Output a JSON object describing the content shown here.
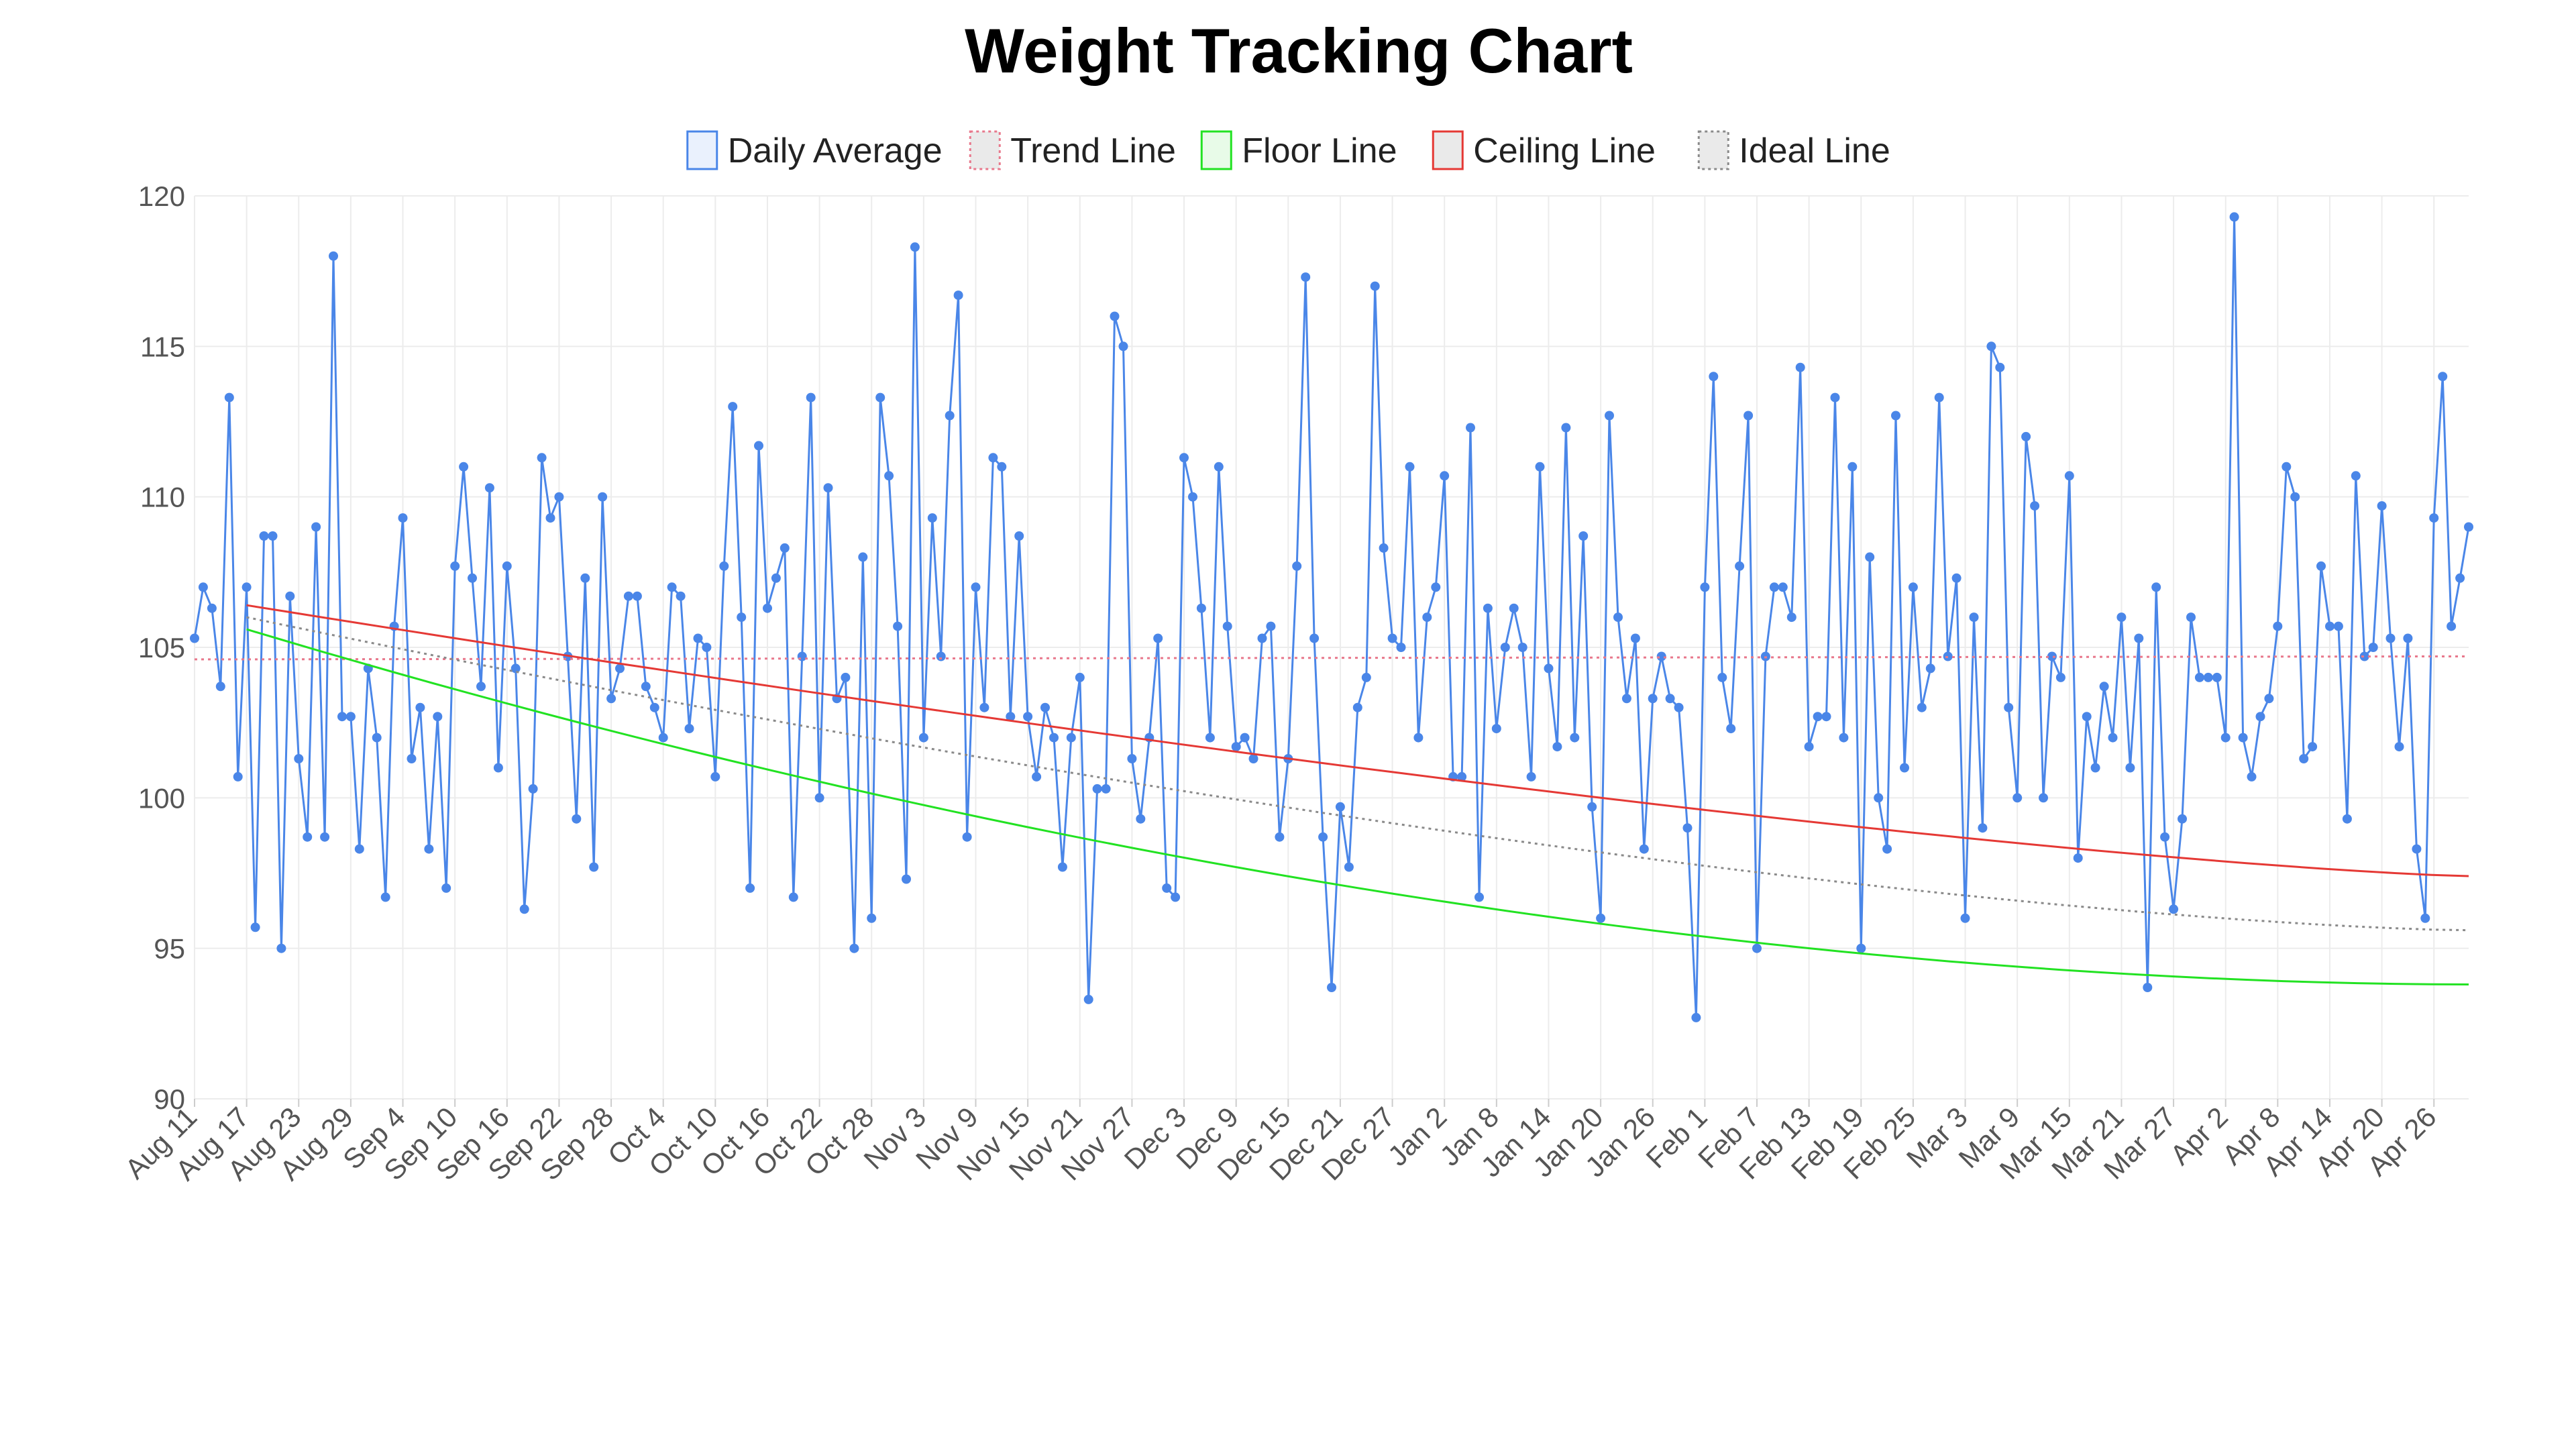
{
  "chart_data": {
    "type": "line",
    "title": "Weight Tracking Chart",
    "xlabel": "",
    "ylabel": "",
    "ylim": [
      90,
      120
    ],
    "y_ticks": [
      90,
      95,
      100,
      105,
      110,
      115,
      120
    ],
    "grid": true,
    "legend_position": "top-center",
    "x_start_date": "2023-08-11",
    "x_end_date": "2024-04-29",
    "x_tick_labels": [
      "Aug 11",
      "Aug 17",
      "Aug 23",
      "Aug 29",
      "Sep 4",
      "Sep 10",
      "Sep 16",
      "Sep 22",
      "Sep 28",
      "Oct 4",
      "Oct 10",
      "Oct 16",
      "Oct 22",
      "Oct 28",
      "Nov 3",
      "Nov 9",
      "Nov 15",
      "Nov 21",
      "Nov 27",
      "Dec 3",
      "Dec 9",
      "Dec 15",
      "Dec 21",
      "Dec 27",
      "Jan 2",
      "Jan 8",
      "Jan 14",
      "Jan 20",
      "Jan 26",
      "Feb 1",
      "Feb 7",
      "Feb 13",
      "Feb 19",
      "Feb 25",
      "Mar 3",
      "Mar 9",
      "Mar 15",
      "Mar 21",
      "Mar 27",
      "Apr 2",
      "Apr 8",
      "Apr 14",
      "Apr 20",
      "Apr 26"
    ],
    "series": [
      {
        "name": "Daily Average",
        "color": "#4a86e8",
        "style": "solid-with-points",
        "values": [
          105.3,
          107.0,
          106.3,
          103.7,
          113.3,
          100.7,
          107.0,
          95.7,
          108.7,
          108.7,
          95.0,
          106.7,
          101.3,
          98.7,
          109.0,
          98.7,
          118.0,
          102.7,
          102.7,
          98.3,
          104.3,
          102.0,
          96.7,
          105.7,
          109.3,
          101.3,
          103.0,
          98.3,
          102.7,
          97.0,
          107.7,
          111.0,
          107.3,
          103.7,
          110.3,
          101.0,
          107.7,
          104.3,
          96.3,
          100.3,
          111.3,
          109.3,
          110.0,
          104.7,
          99.3,
          107.3,
          97.7,
          110.0,
          103.3,
          104.3,
          106.7,
          106.7,
          103.7,
          103.0,
          102.0,
          107.0,
          106.7,
          102.3,
          105.3,
          105.0,
          100.7,
          107.7,
          113.0,
          106.0,
          97.0,
          111.7,
          106.3,
          107.3,
          108.3,
          96.7,
          104.7,
          113.3,
          100.0,
          110.3,
          103.3,
          104.0,
          95.0,
          108.0,
          96.0,
          113.3,
          110.7,
          105.7,
          97.3,
          118.3,
          102.0,
          109.3,
          104.7,
          112.7,
          116.7,
          98.7,
          107.0,
          103.0,
          111.3,
          111.0,
          102.7,
          108.7,
          102.7,
          100.7,
          103.0,
          102.0,
          97.7,
          102.0,
          104.0,
          93.3,
          100.3,
          100.3,
          116.0,
          115.0,
          101.3,
          99.3,
          102.0,
          105.3,
          97.0,
          96.7,
          111.3,
          110.0,
          106.3,
          102.0,
          111.0,
          105.7,
          101.7,
          102.0,
          101.3,
          105.3,
          105.7,
          98.7,
          101.3,
          107.7,
          117.3,
          105.3,
          98.7,
          93.7,
          99.7,
          97.7,
          103.0,
          104.0,
          117.0,
          108.3,
          105.3,
          105.0,
          111.0,
          102.0,
          106.0,
          107.0,
          110.7,
          100.7,
          100.7,
          112.3,
          96.7,
          106.3,
          102.3,
          105.0,
          106.3,
          105.0,
          100.7,
          111.0,
          104.3,
          101.7,
          112.3,
          102.0,
          108.7,
          99.7,
          96.0,
          112.7,
          106.0,
          103.3,
          105.3,
          98.3,
          103.3,
          104.7,
          103.3,
          103.0,
          99.0,
          92.7,
          107.0,
          114.0,
          104.0,
          102.3,
          107.7,
          112.7,
          95.0,
          104.7,
          107.0,
          107.0,
          106.0,
          114.3,
          101.7,
          102.7,
          102.7,
          113.3,
          102.0,
          111.0,
          95.0,
          108.0,
          100.0,
          98.3,
          112.7,
          101.0,
          107.0,
          103.0,
          104.3,
          113.3,
          104.7,
          107.3,
          96.0,
          106.0,
          99.0,
          115.0,
          114.3,
          103.0,
          100.0,
          112.0,
          109.7,
          100.0,
          104.7,
          104.0,
          110.7,
          98.0,
          102.7,
          101.0,
          103.7,
          102.0,
          106.0,
          101.0,
          105.3,
          93.7,
          107.0,
          98.7,
          96.3,
          99.3,
          106.0,
          104.0,
          104.0,
          104.0,
          102.0,
          119.3,
          102.0,
          100.7,
          102.7,
          103.3,
          105.7,
          111.0,
          110.0,
          101.3,
          101.7,
          107.7,
          105.7,
          105.7,
          99.3,
          110.7,
          104.7,
          105.0,
          109.7,
          105.3,
          101.7,
          105.3,
          98.3,
          96.0,
          109.3,
          114.0,
          105.7,
          107.3,
          109.0
        ]
      },
      {
        "name": "Trend Line",
        "color": "#e8788c",
        "style": "dotted",
        "start_date": "2023-08-11",
        "end_date": "2024-04-29",
        "values": [
          104.6,
          104.7
        ]
      },
      {
        "name": "Floor Line",
        "color": "#22e222",
        "style": "solid",
        "start_date": "2023-08-17",
        "end_date": "2024-04-29",
        "values": [
          105.6,
          93.8
        ]
      },
      {
        "name": "Ceiling Line",
        "color": "#e53935",
        "style": "solid",
        "start_date": "2023-08-17",
        "end_date": "2024-04-29",
        "values": [
          106.4,
          97.4
        ]
      },
      {
        "name": "Ideal Line",
        "color": "#8a8a8a",
        "style": "dotted",
        "start_date": "2023-08-17",
        "end_date": "2024-04-29",
        "values": [
          106.0,
          95.6
        ]
      }
    ]
  }
}
